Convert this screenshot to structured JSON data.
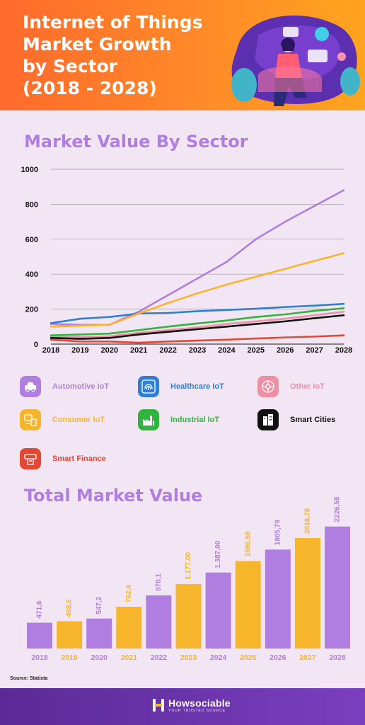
{
  "header": {
    "title_lines": [
      "Internet of Things",
      "Market Growth",
      "by Sector",
      "(2018 - 2028)"
    ]
  },
  "line_section": {
    "title": "Market Value By Sector"
  },
  "legend": [
    {
      "label": "Automotive IoT",
      "color": "#b07ee0",
      "icon": "car-icon"
    },
    {
      "label": "Healthcare IoT",
      "color": "#2f7fd6",
      "icon": "fingerprint-icon"
    },
    {
      "label": "Other IoT",
      "color": "#ef8fa4",
      "icon": "network-icon"
    },
    {
      "label": "Consumer IoT",
      "color": "#f6b52b",
      "icon": "devices-icon"
    },
    {
      "label": "Industrial IoT",
      "color": "#2fb43c",
      "icon": "factory-icon"
    },
    {
      "label": "Smart Cities",
      "color": "#111111",
      "icon": "building-icon"
    },
    {
      "label": "Smart Finance",
      "color": "#e64634",
      "icon": "atm-icon"
    }
  ],
  "bar_section": {
    "title": "Total Market Value"
  },
  "source": "Source: Statista",
  "footer": {
    "brand_name": "Howsociable",
    "brand_tag": "YOUR TRUSTED SOURCE"
  },
  "chart_data": [
    {
      "type": "line",
      "title": "Market Value By Sector",
      "x": [
        "2018",
        "2019",
        "2020",
        "2021",
        "2022",
        "2023",
        "2024",
        "2025",
        "2026",
        "2027",
        "2028"
      ],
      "ylim": [
        0,
        1000
      ],
      "yticks": [
        0,
        200,
        400,
        600,
        800,
        1000
      ],
      "grid": true,
      "series": [
        {
          "name": "Automotive IoT",
          "color": "#b07ee0",
          "values": [
            115,
            110,
            110,
            185,
            280,
            375,
            470,
            600,
            700,
            790,
            880
          ]
        },
        {
          "name": "Healthcare IoT",
          "color": "#2f7fd6",
          "values": [
            120,
            145,
            155,
            175,
            178,
            188,
            195,
            202,
            212,
            220,
            230
          ]
        },
        {
          "name": "Other IoT",
          "color": "#ef8fa4",
          "values": [
            40,
            40,
            45,
            65,
            80,
            95,
            115,
            130,
            145,
            165,
            185
          ]
        },
        {
          "name": "Consumer IoT",
          "color": "#f6b52b",
          "values": [
            100,
            105,
            110,
            175,
            235,
            290,
            340,
            385,
            430,
            475,
            520
          ]
        },
        {
          "name": "Industrial IoT",
          "color": "#2fb43c",
          "values": [
            50,
            55,
            60,
            80,
            100,
            118,
            135,
            155,
            170,
            190,
            205
          ]
        },
        {
          "name": "Smart Cities",
          "color": "#111111",
          "values": [
            35,
            30,
            35,
            55,
            70,
            85,
            100,
            115,
            130,
            148,
            165
          ]
        },
        {
          "name": "Smart Finance",
          "color": "#e64634",
          "values": [
            25,
            15,
            15,
            8,
            15,
            20,
            25,
            32,
            38,
            43,
            50
          ]
        }
      ]
    },
    {
      "type": "bar",
      "title": "Total Market Value",
      "categories": [
        "2018",
        "2019",
        "2020",
        "2021",
        "2022",
        "2023",
        "2024",
        "2025",
        "2026",
        "2027",
        "2028"
      ],
      "values": [
        471.6,
        498.5,
        547.2,
        762.4,
        970.1,
        1177.0,
        1387.0,
        1596.59,
        1805.79,
        2016.78,
        2226.58
      ],
      "value_labels": [
        "471,6",
        "498,5",
        "547,2",
        "762,4",
        "970,1",
        "1.177,00",
        "1.387,00",
        "1596,59",
        "1805,79",
        "2016,78",
        "2226,58"
      ],
      "colors": [
        "#b07ee0",
        "#f6b52b",
        "#b07ee0",
        "#f6b52b",
        "#b07ee0",
        "#f6b52b",
        "#b07ee0",
        "#f6b52b",
        "#b07ee0",
        "#f6b52b",
        "#b07ee0"
      ],
      "ylim": [
        0,
        2300
      ]
    }
  ]
}
